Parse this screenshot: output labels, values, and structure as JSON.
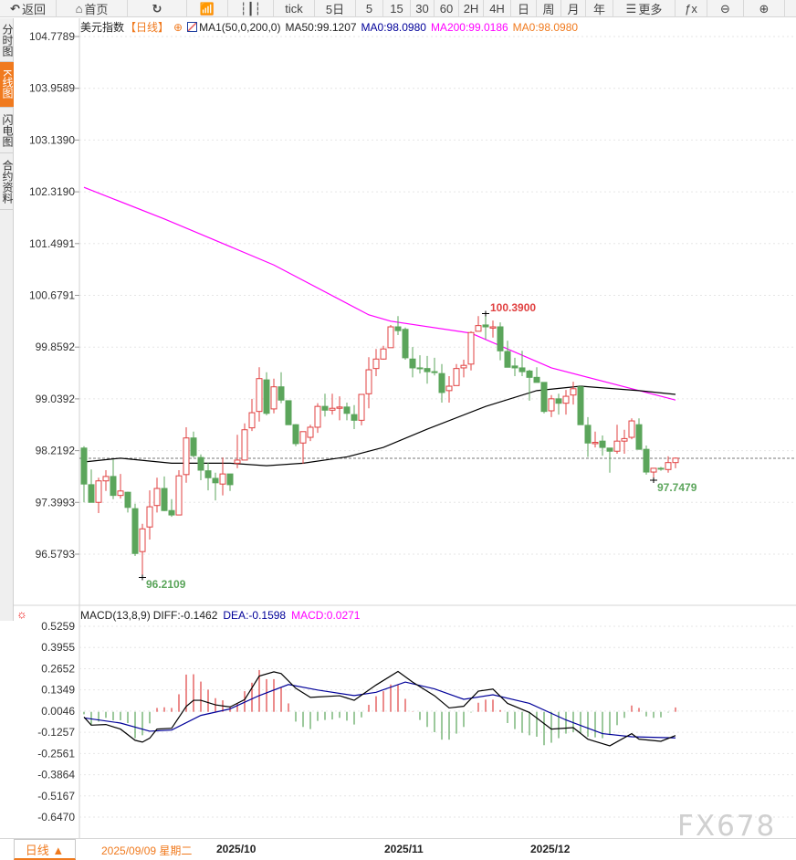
{
  "toolbar": {
    "items": [
      {
        "label": "返回",
        "icon": "back-arrow-icon"
      },
      {
        "label": "首页",
        "icon": "home-icon"
      },
      {
        "label": "",
        "icon": "refresh-icon"
      },
      {
        "label": "",
        "icon": "bar-chart-icon"
      },
      {
        "label": "",
        "icon": "candlestick-icon"
      },
      {
        "label": "tick"
      },
      {
        "label": "5日"
      },
      {
        "label": "5"
      },
      {
        "label": "15"
      },
      {
        "label": "30"
      },
      {
        "label": "60"
      },
      {
        "label": "2H"
      },
      {
        "label": "4H"
      },
      {
        "label": "日"
      },
      {
        "label": "周"
      },
      {
        "label": "月"
      },
      {
        "label": "年"
      },
      {
        "label": "更多",
        "icon": "menu-icon"
      },
      {
        "label": "ƒx",
        "icon": "formula-icon"
      },
      {
        "label": "⊖",
        "icon": "zoom-out-icon"
      },
      {
        "label": "⊕",
        "icon": "zoom-in-icon"
      }
    ]
  },
  "sidebar": {
    "tabs": [
      {
        "label": "分时图"
      },
      {
        "label": "K线图",
        "active": true
      },
      {
        "label": "闪电图"
      },
      {
        "label": "合约资料"
      }
    ]
  },
  "legend": {
    "symbol": "美元指数",
    "period": "【日线】",
    "indicator": "MA1(50,0,200,0)",
    "ma50": "MA50:99.1207",
    "ma0a": "MA0:98.0980",
    "ma200": "MA200:99.0186",
    "ma0b": "MA0:98.0980"
  },
  "macd_legend": {
    "name": "MACD(13,8,9)",
    "diff": "DIFF:-0.1462",
    "dea": "DEA:-0.1598",
    "macd": "MACD:0.0271"
  },
  "annotations": {
    "high": "100.3900",
    "low": "96.2109",
    "recent_low": "97.7479"
  },
  "bottom": {
    "period_button": "日线 ▲",
    "cursor_date": "2025/09/09 星期二",
    "months": [
      "2025/10",
      "2025/11",
      "2025/12"
    ]
  },
  "watermark": "FX678",
  "colors": {
    "up": "#e04040",
    "down": "#5ba55b",
    "ma50": "#000000",
    "ma200": "#ff00ff",
    "dea": "#000099",
    "accent": "#f07a1e"
  },
  "chart_data": [
    {
      "type": "candlestick",
      "title": "美元指数",
      "price_ticks": [
        "104.7789",
        "103.9589",
        "103.1390",
        "102.3190",
        "101.4991",
        "100.6791",
        "99.8592",
        "99.0392",
        "98.2192",
        "97.3993",
        "96.5793"
      ],
      "ylim": [
        96.5793,
        104.7789
      ],
      "last_price": 98.098,
      "grid": true,
      "x_ticks": [
        {
          "label": "2025/10",
          "index": 19
        },
        {
          "label": "2025/11",
          "index": 42
        },
        {
          "label": "2025/12",
          "index": 62
        }
      ],
      "ohlc": [
        [
          98.26,
          98.29,
          97.4,
          97.69
        ],
        [
          97.68,
          97.92,
          97.4,
          97.4
        ],
        [
          97.4,
          97.79,
          97.23,
          97.74
        ],
        [
          97.74,
          97.91,
          97.58,
          97.81
        ],
        [
          97.81,
          98.08,
          97.45,
          97.51
        ],
        [
          97.51,
          97.85,
          97.46,
          97.58
        ],
        [
          97.56,
          97.57,
          97.24,
          97.32
        ],
        [
          97.3,
          97.38,
          96.55,
          96.59
        ],
        [
          96.62,
          97.06,
          96.21,
          96.98
        ],
        [
          97.01,
          97.59,
          96.81,
          97.33
        ],
        [
          97.35,
          97.79,
          97.24,
          97.62
        ],
        [
          97.62,
          97.81,
          97.26,
          97.27
        ],
        [
          97.27,
          97.45,
          97.17,
          97.2
        ],
        [
          97.2,
          97.91,
          97.2,
          97.82
        ],
        [
          97.84,
          98.59,
          97.71,
          98.42
        ],
        [
          98.42,
          98.52,
          98.11,
          98.14
        ],
        [
          98.11,
          98.16,
          97.75,
          97.91
        ],
        [
          97.9,
          98.03,
          97.59,
          97.79
        ],
        [
          97.78,
          97.87,
          97.43,
          97.71
        ],
        [
          97.69,
          98.11,
          97.51,
          97.85
        ],
        [
          97.85,
          97.85,
          97.58,
          97.68
        ],
        [
          98.02,
          98.47,
          97.94,
          98.07
        ],
        [
          98.07,
          98.65,
          98.07,
          98.55
        ],
        [
          98.58,
          99.04,
          98.53,
          98.82
        ],
        [
          98.84,
          99.54,
          98.68,
          99.36
        ],
        [
          99.34,
          99.46,
          98.78,
          98.81
        ],
        [
          98.88,
          99.36,
          98.81,
          99.23
        ],
        [
          99.23,
          99.46,
          98.97,
          99.02
        ],
        [
          99.01,
          99.01,
          98.63,
          98.63
        ],
        [
          98.63,
          98.64,
          98.29,
          98.33
        ],
        [
          98.34,
          98.52,
          98.01,
          98.52
        ],
        [
          98.43,
          98.63,
          98.37,
          98.59
        ],
        [
          98.59,
          98.97,
          98.5,
          98.92
        ],
        [
          98.92,
          99.12,
          98.76,
          98.86
        ],
        [
          98.86,
          99.12,
          98.79,
          98.89
        ],
        [
          98.89,
          99.08,
          98.7,
          98.91
        ],
        [
          98.91,
          98.98,
          98.7,
          98.81
        ],
        [
          98.79,
          98.94,
          98.56,
          98.7
        ],
        [
          98.7,
          99.11,
          98.62,
          99.11
        ],
        [
          99.12,
          99.7,
          98.89,
          99.5
        ],
        [
          99.52,
          99.83,
          99.4,
          99.67
        ],
        [
          99.67,
          99.88,
          99.66,
          99.83
        ],
        [
          99.85,
          100.21,
          99.85,
          100.18
        ],
        [
          100.18,
          100.35,
          100.05,
          100.12
        ],
        [
          100.14,
          100.17,
          99.66,
          99.69
        ],
        [
          99.67,
          99.86,
          99.38,
          99.53
        ],
        [
          99.53,
          99.73,
          99.44,
          99.52
        ],
        [
          99.52,
          99.72,
          99.28,
          99.47
        ],
        [
          99.47,
          99.69,
          99.41,
          99.46
        ],
        [
          99.44,
          99.59,
          98.98,
          99.14
        ],
        [
          99.17,
          99.4,
          98.98,
          99.24
        ],
        [
          99.25,
          99.59,
          99.25,
          99.52
        ],
        [
          99.53,
          99.66,
          99.38,
          99.57
        ],
        [
          99.59,
          100.11,
          99.49,
          100.09
        ],
        [
          100.11,
          100.35,
          100.11,
          100.2
        ],
        [
          100.21,
          100.39,
          99.98,
          100.18
        ],
        [
          100.16,
          100.28,
          100.01,
          100.18
        ],
        [
          100.18,
          100.25,
          99.65,
          99.8
        ],
        [
          99.79,
          99.96,
          99.54,
          99.54
        ],
        [
          99.56,
          99.69,
          99.4,
          99.53
        ],
        [
          99.53,
          99.8,
          99.4,
          99.47
        ],
        [
          99.48,
          99.5,
          99.01,
          99.38
        ],
        [
          99.38,
          99.54,
          99.3,
          99.3
        ],
        [
          99.3,
          99.3,
          98.81,
          98.84
        ],
        [
          98.85,
          99.1,
          98.75,
          99.04
        ],
        [
          99.04,
          99.12,
          98.79,
          98.97
        ],
        [
          98.97,
          99.18,
          98.79,
          99.08
        ],
        [
          99.1,
          99.31,
          98.95,
          99.2
        ],
        [
          99.23,
          99.25,
          98.63,
          98.63
        ],
        [
          98.62,
          98.75,
          98.12,
          98.34
        ],
        [
          98.33,
          98.52,
          98.27,
          98.35
        ],
        [
          98.37,
          98.46,
          98.14,
          98.27
        ],
        [
          98.26,
          98.26,
          97.87,
          98.21
        ],
        [
          98.21,
          98.63,
          98.17,
          98.37
        ],
        [
          98.37,
          98.55,
          98.17,
          98.41
        ],
        [
          98.43,
          98.73,
          98.4,
          98.69
        ],
        [
          98.63,
          98.73,
          98.24,
          98.24
        ],
        [
          98.24,
          98.3,
          97.84,
          97.88
        ],
        [
          97.88,
          97.94,
          97.75,
          97.94
        ],
        [
          97.94,
          97.96,
          97.9,
          97.93
        ],
        [
          97.92,
          98.13,
          97.87,
          98.03
        ],
        [
          98.03,
          98.11,
          97.94,
          98.1
        ]
      ],
      "ma50": [
        [
          1,
          98.04
        ],
        [
          6,
          98.1
        ],
        [
          13,
          98.02
        ],
        [
          21,
          98.02
        ],
        [
          26,
          97.98
        ],
        [
          31,
          98.02
        ],
        [
          37,
          98.12
        ],
        [
          42,
          98.27
        ],
        [
          48,
          98.56
        ],
        [
          56,
          98.92
        ],
        [
          63,
          99.17
        ],
        [
          69,
          99.24
        ],
        [
          77,
          99.17
        ],
        [
          82,
          99.11
        ]
      ],
      "ma200": [
        [
          1,
          102.39
        ],
        [
          12,
          101.89
        ],
        [
          27,
          101.16
        ],
        [
          40,
          100.37
        ],
        [
          43,
          100.27
        ],
        [
          54,
          100.08
        ],
        [
          65,
          99.53
        ],
        [
          77,
          99.17
        ],
        [
          82,
          99.02
        ]
      ]
    },
    {
      "type": "macd",
      "ticks": [
        "0.5259",
        "0.3955",
        "0.2652",
        "0.1349",
        "0.0046",
        "-0.1257",
        "-0.2561",
        "-0.3864",
        "-0.5167",
        "-0.6470"
      ],
      "ylim": [
        -0.647,
        0.5259
      ],
      "histogram": [
        -0.015,
        -0.078,
        -0.06,
        -0.037,
        -0.052,
        -0.052,
        -0.069,
        -0.162,
        -0.144,
        -0.071,
        0.024,
        0.028,
        0.024,
        0.108,
        0.229,
        0.231,
        0.186,
        0.136,
        0.084,
        0.071,
        0.034,
        0.052,
        0.127,
        0.179,
        0.257,
        0.201,
        0.201,
        0.149,
        0.052,
        -0.06,
        -0.093,
        -0.106,
        -0.056,
        -0.05,
        -0.047,
        -0.037,
        -0.054,
        -0.078,
        -0.034,
        0.043,
        0.096,
        0.127,
        0.168,
        0.164,
        0.08,
        0.002,
        -0.05,
        -0.093,
        -0.125,
        -0.171,
        -0.171,
        -0.134,
        -0.093,
        -0.004,
        0.056,
        0.075,
        0.075,
        0.011,
        -0.069,
        -0.106,
        -0.129,
        -0.144,
        -0.153,
        -0.205,
        -0.19,
        -0.162,
        -0.134,
        -0.125,
        -0.134,
        -0.153,
        -0.157,
        -0.162,
        -0.143,
        -0.082,
        -0.037,
        0.039,
        0.024,
        -0.028,
        -0.037,
        -0.034,
        -0.004,
        0.027
      ],
      "diff": [
        [
          1,
          -0.032
        ],
        [
          2,
          -0.082
        ],
        [
          4,
          -0.078
        ],
        [
          6,
          -0.106
        ],
        [
          8,
          -0.175
        ],
        [
          9,
          -0.186
        ],
        [
          10,
          -0.162
        ],
        [
          11,
          -0.106
        ],
        [
          13,
          -0.101
        ],
        [
          15,
          0.033
        ],
        [
          16,
          0.071
        ],
        [
          17,
          0.071
        ],
        [
          19,
          0.043
        ],
        [
          21,
          0.03
        ],
        [
          23,
          0.075
        ],
        [
          25,
          0.22
        ],
        [
          27,
          0.246
        ],
        [
          28,
          0.235
        ],
        [
          30,
          0.145
        ],
        [
          32,
          0.089
        ],
        [
          36,
          0.099
        ],
        [
          38,
          0.071
        ],
        [
          41,
          0.165
        ],
        [
          44,
          0.248
        ],
        [
          46,
          0.183
        ],
        [
          49,
          0.099
        ],
        [
          51,
          0.024
        ],
        [
          53,
          0.034
        ],
        [
          55,
          0.127
        ],
        [
          57,
          0.14
        ],
        [
          59,
          0.052
        ],
        [
          62,
          -0.004
        ],
        [
          65,
          -0.106
        ],
        [
          68,
          -0.097
        ],
        [
          70,
          -0.168
        ],
        [
          73,
          -0.209
        ],
        [
          76,
          -0.134
        ],
        [
          77,
          -0.168
        ],
        [
          80,
          -0.181
        ],
        [
          82,
          -0.146
        ]
      ],
      "dea": [
        [
          1,
          -0.037
        ],
        [
          6,
          -0.069
        ],
        [
          10,
          -0.119
        ],
        [
          13,
          -0.112
        ],
        [
          17,
          -0.022
        ],
        [
          21,
          0.018
        ],
        [
          25,
          0.1
        ],
        [
          29,
          0.168
        ],
        [
          33,
          0.134
        ],
        [
          38,
          0.1
        ],
        [
          41,
          0.12
        ],
        [
          45,
          0.183
        ],
        [
          49,
          0.141
        ],
        [
          53,
          0.077
        ],
        [
          57,
          0.105
        ],
        [
          62,
          0.052
        ],
        [
          67,
          -0.05
        ],
        [
          72,
          -0.134
        ],
        [
          76,
          -0.153
        ],
        [
          82,
          -0.16
        ]
      ]
    }
  ]
}
